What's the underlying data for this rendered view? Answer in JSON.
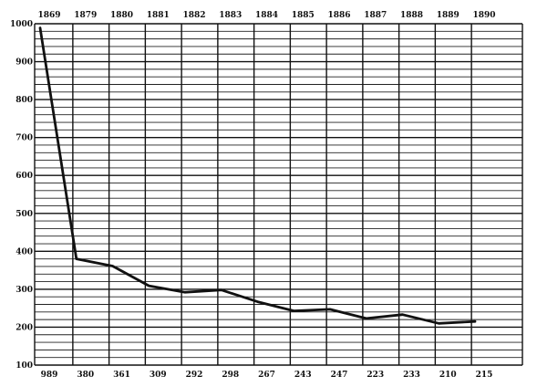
{
  "chart_data": {
    "type": "line",
    "title": "",
    "xlabel": "",
    "ylabel": "",
    "categories": [
      "1869",
      "1879",
      "1880",
      "1881",
      "1882",
      "1883",
      "1884",
      "1885",
      "1886",
      "1887",
      "1888",
      "1889",
      "1890"
    ],
    "bottom_labels": [
      "989",
      "380",
      "361",
      "309",
      "292",
      "298",
      "267",
      "243",
      "247",
      "223",
      "233",
      "210",
      "215"
    ],
    "series": [
      {
        "values": [
          989,
          380,
          361,
          309,
          292,
          298,
          267,
          243,
          247,
          223,
          233,
          210,
          215
        ]
      }
    ],
    "ylim": [
      100,
      1000
    ],
    "yticks": [
      "100",
      "200",
      "300",
      "400",
      "500",
      "600",
      "700",
      "800",
      "900",
      "1000"
    ],
    "grid": true
  }
}
